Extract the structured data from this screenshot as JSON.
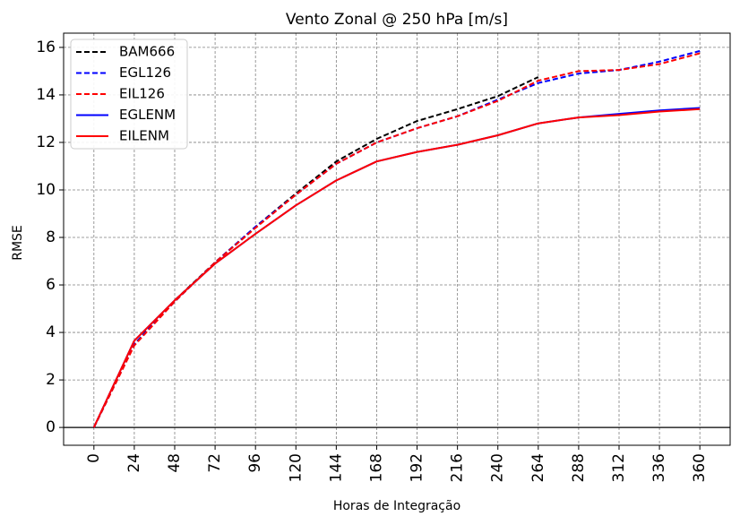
{
  "chart_data": {
    "type": "line",
    "title": "Vento Zonal @ 250 hPa [m/s]",
    "xlabel": "Horas de Integração",
    "ylabel": "RMSE",
    "x": [
      0,
      24,
      48,
      72,
      96,
      120,
      144,
      168,
      192,
      216,
      240,
      264,
      288,
      312,
      336,
      360
    ],
    "xlim": [
      -18,
      378
    ],
    "ylim": [
      -0.75,
      16.6
    ],
    "yticks": [
      0,
      2,
      4,
      6,
      8,
      10,
      12,
      14,
      16
    ],
    "grid": true,
    "legend_position": "top-left",
    "zero_line": true,
    "series": [
      {
        "name": "BAM666",
        "color": "#000000",
        "style": "dashed",
        "values": [
          0.0,
          3.5,
          5.35,
          6.95,
          8.45,
          9.85,
          11.2,
          12.15,
          12.9,
          13.4,
          13.95,
          14.75,
          null,
          null,
          null,
          null
        ]
      },
      {
        "name": "EGL126",
        "color": "#0000ff",
        "style": "dashed",
        "values": [
          0.0,
          3.5,
          5.3,
          6.95,
          8.45,
          9.8,
          11.1,
          12.0,
          12.6,
          13.1,
          13.8,
          14.5,
          14.9,
          15.05,
          15.4,
          15.85
        ]
      },
      {
        "name": "EIL126",
        "color": "#ff0000",
        "style": "dashed",
        "values": [
          0.0,
          3.45,
          5.3,
          6.95,
          8.4,
          9.8,
          11.1,
          12.0,
          12.6,
          13.1,
          13.75,
          14.6,
          15.0,
          15.05,
          15.3,
          15.75
        ]
      },
      {
        "name": "EGLENM",
        "color": "#0000ff",
        "style": "solid",
        "values": [
          0.0,
          3.65,
          5.35,
          6.9,
          8.15,
          9.35,
          10.4,
          11.2,
          11.6,
          11.9,
          12.3,
          12.8,
          13.05,
          13.2,
          13.35,
          13.45
        ]
      },
      {
        "name": "EILENM",
        "color": "#ff0000",
        "style": "solid",
        "values": [
          0.0,
          3.65,
          5.35,
          6.9,
          8.15,
          9.35,
          10.4,
          11.2,
          11.6,
          11.9,
          12.3,
          12.8,
          13.05,
          13.15,
          13.3,
          13.4
        ]
      }
    ]
  }
}
